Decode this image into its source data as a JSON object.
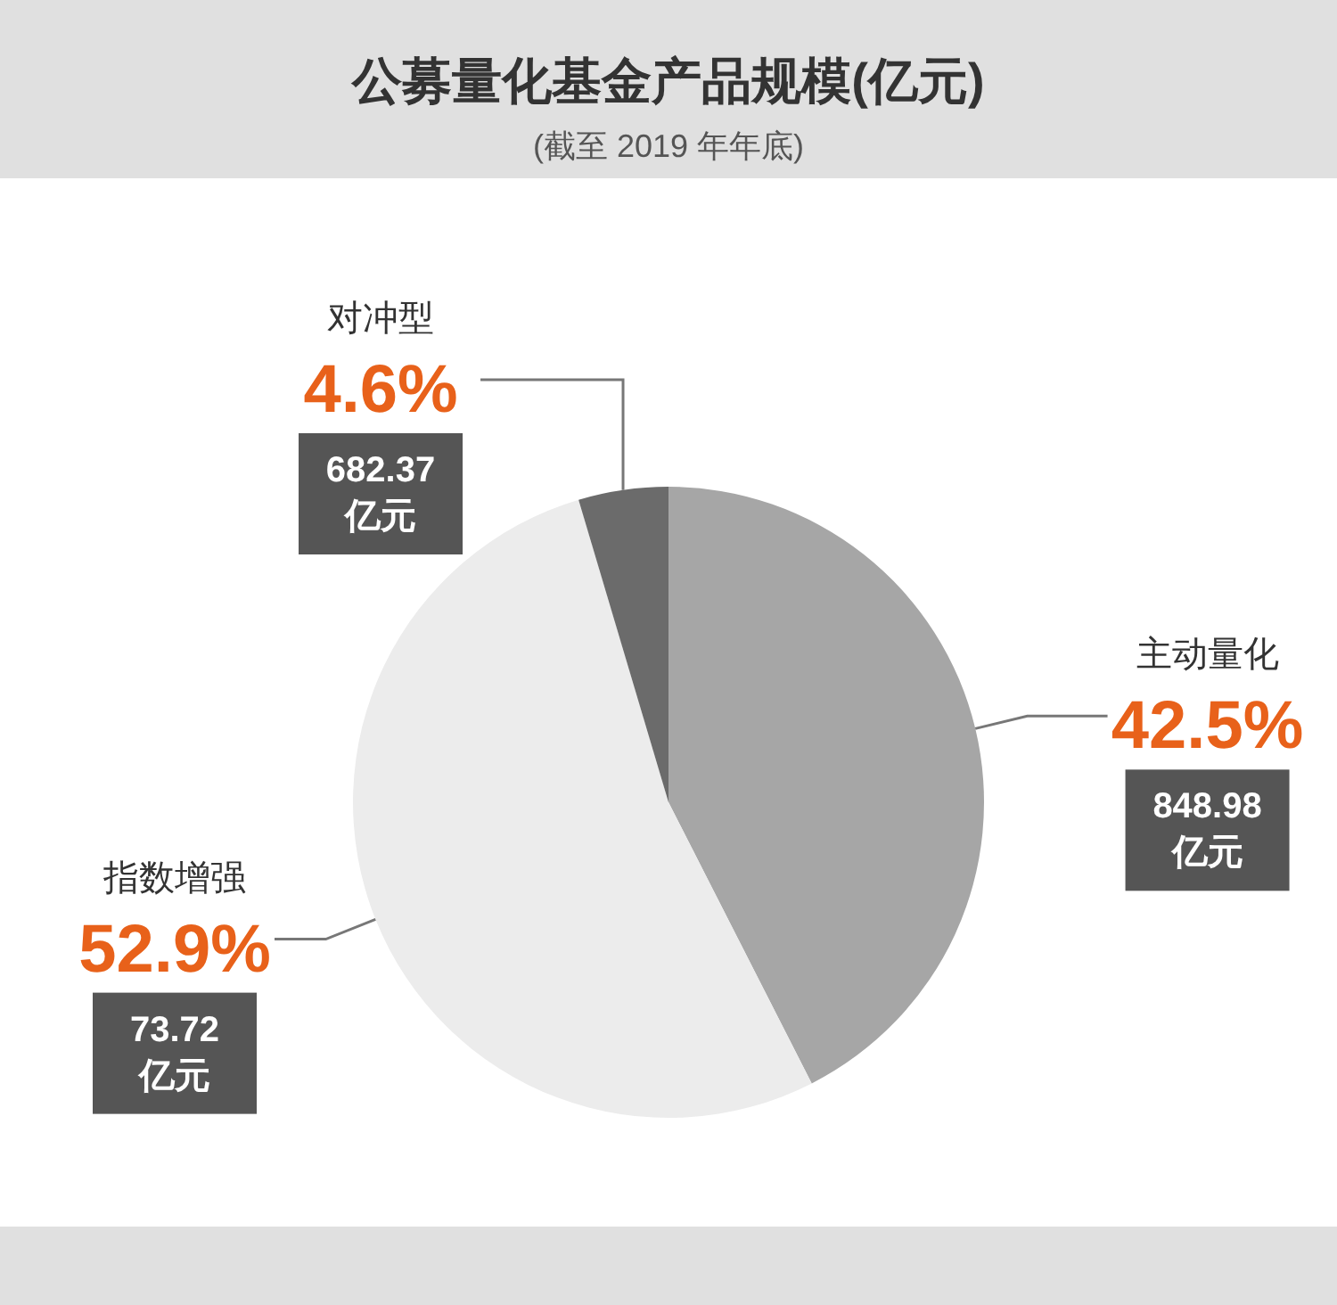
{
  "chart_data": {
    "type": "pie",
    "title": "公募量化基金产品规模(亿元)",
    "subtitle": "(截至 2019 年年底)",
    "categories": [
      "主动量化",
      "指数增强",
      "对冲型"
    ],
    "values": [
      42.5,
      52.9,
      4.6
    ],
    "colors": [
      "#a6a6a6",
      "#ececec",
      "#6b6b6b"
    ],
    "value_labels": [
      "42.5%",
      "52.9%",
      "4.6%"
    ],
    "annotations": [
      "848.98\n亿元",
      "73.72\n亿元",
      "682.37\n亿元"
    ]
  }
}
